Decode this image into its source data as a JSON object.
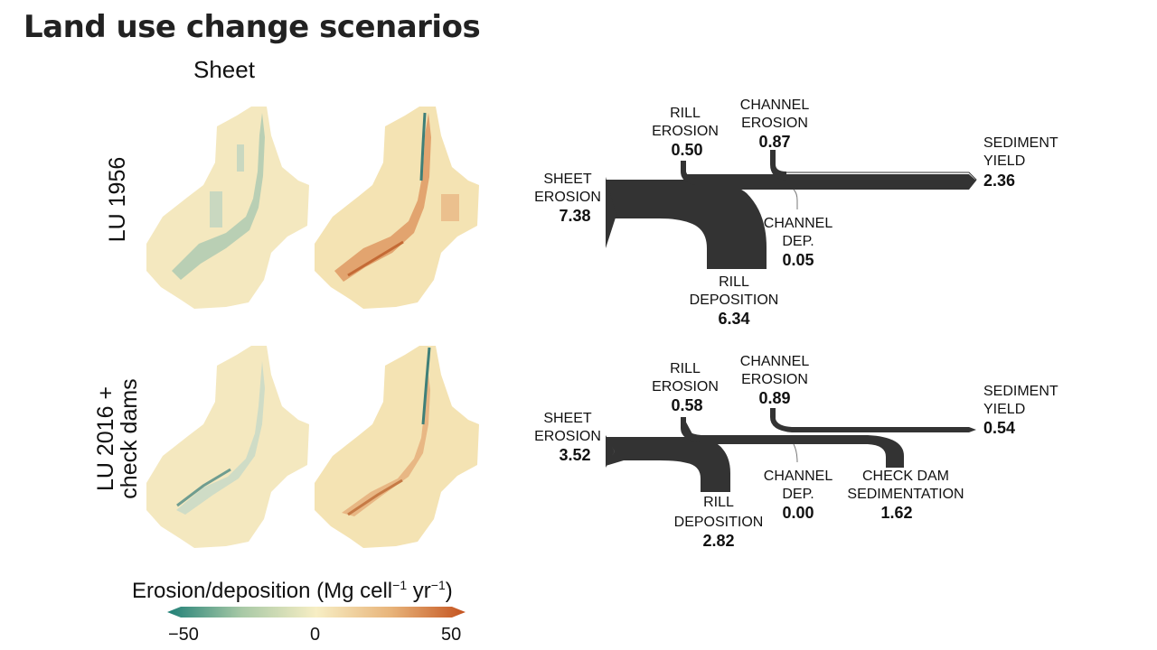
{
  "slide": {
    "title": "Land use change scenarios",
    "column_header": "Sheet"
  },
  "rows": [
    {
      "label_line1": "LU 1956",
      "label_line2": ""
    },
    {
      "label_line1": "LU 2016 +",
      "label_line2": "check dams"
    }
  ],
  "flows": [
    {
      "sheet_erosion": {
        "line1": "SHEET",
        "line2": "EROSION",
        "value": "7.38"
      },
      "rill_erosion": {
        "line1": "RILL",
        "line2": "EROSION",
        "value": "0.50"
      },
      "channel_erosion": {
        "line1": "CHANNEL",
        "line2": "EROSION",
        "value": "0.87"
      },
      "sediment_yield": {
        "line1": "SEDIMENT",
        "line2": "YIELD",
        "value": "2.36"
      },
      "channel_dep": {
        "line1": "CHANNEL",
        "line2": "DEP.",
        "value": "0.05"
      },
      "rill_deposition": {
        "line1": "RILL",
        "line2": "DEPOSITION",
        "value": "6.34"
      }
    },
    {
      "sheet_erosion": {
        "line1": "SHEET",
        "line2": "EROSION",
        "value": "3.52"
      },
      "rill_erosion": {
        "line1": "RILL",
        "line2": "EROSION",
        "value": "0.58"
      },
      "channel_erosion": {
        "line1": "CHANNEL",
        "line2": "EROSION",
        "value": "0.89"
      },
      "sediment_yield": {
        "line1": "SEDIMENT",
        "line2": "YIELD",
        "value": "0.54"
      },
      "channel_dep": {
        "line1": "CHANNEL",
        "line2": "DEP.",
        "value": "0.00"
      },
      "rill_deposition": {
        "line1": "RILL",
        "line2": "DEPOSITION",
        "value": "2.82"
      },
      "check_dam": {
        "line1": "CHECK DAM",
        "line2": "SEDIMENTATION",
        "value": "1.62"
      }
    }
  ],
  "legend": {
    "title": "Erosion/deposition (Mg cell",
    "exp1": "−1",
    "mid": " yr",
    "exp2": "−1",
    "close": ")",
    "ticks": [
      "−50",
      "0",
      "50"
    ],
    "colors": {
      "low": "#1f7f76",
      "mid": "#f7eec4",
      "high": "#c4531f"
    }
  },
  "colors": {
    "flow": "#333333"
  }
}
